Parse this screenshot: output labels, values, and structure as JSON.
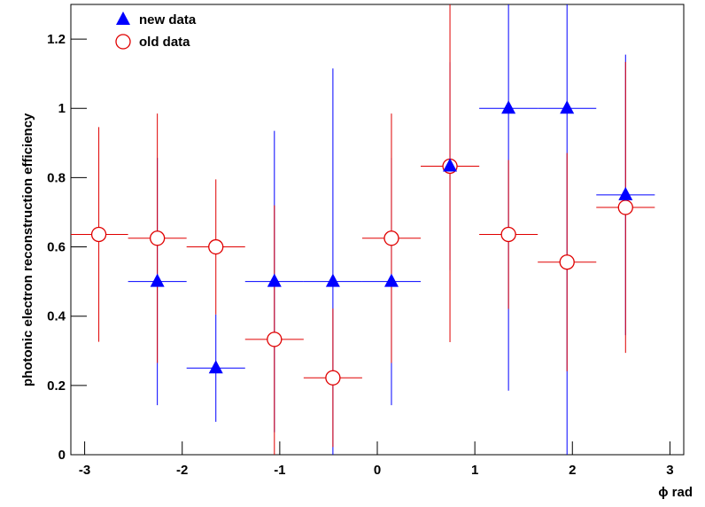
{
  "chart_data": {
    "type": "errorbar",
    "xlabel": "ϕ rad",
    "ylabel": "photonic electron reconstruction efficiency",
    "xlim": [
      -3.1416,
      3.1416
    ],
    "ylim": [
      0,
      1.3
    ],
    "xticks": [
      -3,
      -2,
      -1,
      0,
      1,
      2,
      3
    ],
    "yticks": [
      0,
      0.2,
      0.4,
      0.6,
      0.8,
      1,
      1.2
    ],
    "legend": "upper left",
    "series": [
      {
        "name": "new data",
        "color": "#0000ff",
        "marker": "triangle",
        "xerr": 0.3,
        "x": [
          -2.255,
          -1.655,
          -1.055,
          -0.455,
          0.145,
          0.745,
          1.345,
          1.945,
          2.545
        ],
        "values": [
          0.5,
          0.25,
          0.5,
          0.5,
          0.5,
          0.833,
          1.0,
          1.0,
          0.75
        ],
        "errors": [
          0.357,
          0.155,
          0.435,
          0.615,
          0.357,
          0.3,
          0.815,
          1.0,
          0.405
        ]
      },
      {
        "name": "old data",
        "color": "#e00000",
        "marker": "circle",
        "xerr": 0.3,
        "x": [
          -2.855,
          -2.255,
          -1.655,
          -1.055,
          -0.455,
          0.145,
          0.745,
          1.345,
          1.945,
          2.545
        ],
        "values": [
          0.636,
          0.625,
          0.6,
          0.333,
          0.222,
          0.625,
          0.833,
          0.636,
          0.556,
          0.714
        ],
        "errors": [
          0.31,
          0.36,
          0.195,
          0.387,
          0.2,
          0.36,
          0.508,
          0.215,
          0.315,
          0.42
        ]
      }
    ]
  }
}
